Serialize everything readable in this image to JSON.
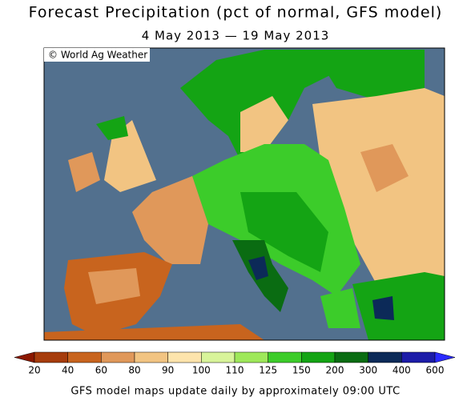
{
  "title": "Forecast Precipitation (pct of normal, GFS model)",
  "subtitle": "4 May 2013 — 19 May 2013",
  "credit": "© World Ag Weather",
  "legend": {
    "ticks": [
      20,
      40,
      60,
      80,
      90,
      100,
      110,
      125,
      150,
      200,
      300,
      400,
      600
    ],
    "colors": [
      "#8b1800",
      "#a63c0c",
      "#c8641e",
      "#e0985a",
      "#f2c482",
      "#fde4ac",
      "#d8f49a",
      "#9ee85a",
      "#3ccc2a",
      "#14a414",
      "#0a6c12",
      "#0c2a58",
      "#1c1ca8",
      "#2a2aff"
    ]
  },
  "footer": "GFS model maps update daily by approximately 09:00 UTC"
}
